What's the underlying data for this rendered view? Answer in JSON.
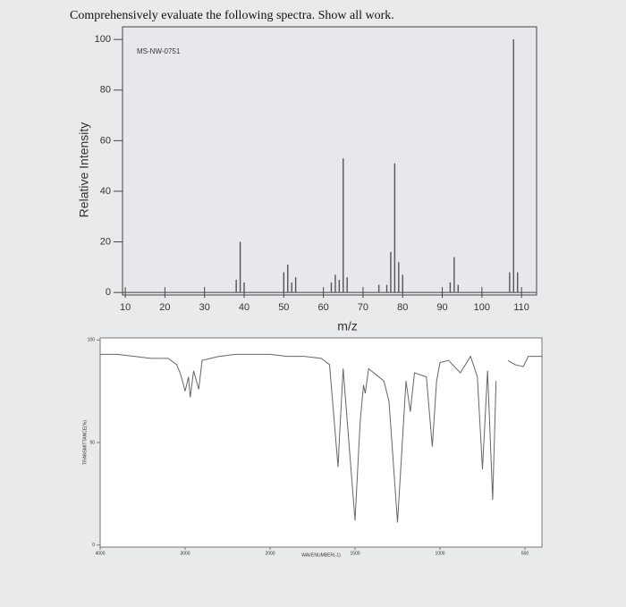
{
  "question": "Comprehensively evaluate the following spectra. Show all work.",
  "chart_data": [
    {
      "type": "bar",
      "annotation": "MS-NW-0751",
      "ylabel": "Relative Intensity",
      "xlabel": "m/z",
      "color": "#555555",
      "x": [
        38,
        39,
        40,
        50,
        51,
        52,
        53,
        62,
        63,
        64,
        65,
        66,
        74,
        76,
        77,
        78,
        79,
        80,
        92,
        93,
        94,
        107,
        108,
        109
      ],
      "values": [
        5,
        20,
        4,
        8,
        11,
        4,
        6,
        4,
        7,
        5,
        53,
        6,
        3,
        3,
        16,
        51,
        12,
        7,
        4,
        14,
        3,
        8,
        100,
        8
      ],
      "xlim": [
        9.3,
        113.8
      ],
      "ylim": [
        -1,
        105
      ],
      "xticks": [
        10,
        20,
        30,
        40,
        50,
        60,
        70,
        80,
        90,
        100,
        110
      ],
      "yticks": [
        0,
        20,
        40,
        60,
        80,
        100
      ]
    },
    {
      "type": "line",
      "ylabel": "TRANSMITTANCE(%)",
      "xlabel": "WAVENUMBER(-1)",
      "color": "#666666",
      "x": [
        4000,
        3800,
        3600,
        3400,
        3200,
        3100,
        3060,
        3030,
        3000,
        2960,
        2940,
        2900,
        2840,
        2800,
        2600,
        2400,
        2200,
        2000,
        1900,
        1800,
        1700,
        1650,
        1600,
        1590,
        1570,
        1500,
        1470,
        1450,
        1440,
        1420,
        1330,
        1300,
        1250,
        1200,
        1175,
        1150,
        1080,
        1045,
        1020,
        1000,
        950,
        880,
        820,
        780,
        750,
        720,
        690,
        670,
        640,
        600,
        560,
        510,
        480,
        420,
        400
      ],
      "values": [
        93,
        93,
        92,
        91,
        91,
        88,
        84,
        80,
        75,
        82,
        72,
        85,
        76,
        90,
        92,
        93,
        93,
        93,
        92,
        92,
        91,
        88,
        38,
        55,
        86,
        12,
        60,
        78,
        74,
        86,
        80,
        70,
        11,
        80,
        65,
        84,
        82,
        48,
        80,
        89,
        90,
        84,
        92,
        82,
        37,
        85,
        22,
        80,
        null,
        90,
        88,
        87,
        92,
        92,
        92
      ],
      "xlim": [
        4000,
        400
      ],
      "ylim": [
        -1,
        101
      ],
      "xticks": [
        4000,
        3000,
        2000,
        1500,
        1000,
        500
      ],
      "yticks": [
        0,
        50,
        100
      ]
    }
  ]
}
